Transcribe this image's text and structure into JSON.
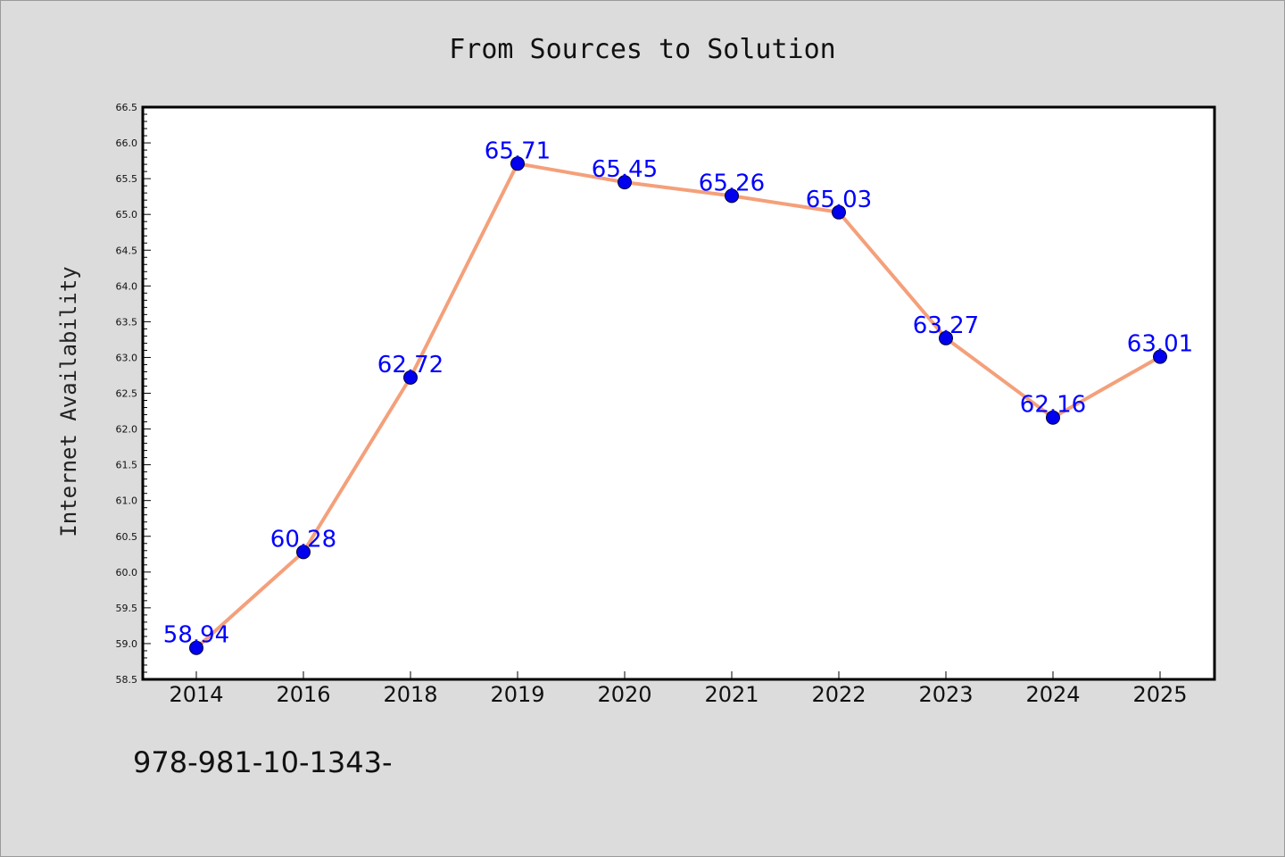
{
  "chart_data": {
    "type": "line",
    "title": "From Sources to Solution",
    "ylabel": "Internet Availability",
    "xlabel": "",
    "categories": [
      "2014",
      "2016",
      "2018",
      "2019",
      "2020",
      "2021",
      "2022",
      "2023",
      "2024",
      "2025"
    ],
    "series": [
      {
        "values": [
          58.94,
          60.28,
          62.72,
          65.71,
          65.45,
          65.26,
          65.03,
          63.27,
          62.16,
          63.01
        ],
        "line_color": "#f4a07a",
        "marker_color": "#0000ee"
      }
    ],
    "ylim": [
      58.5,
      66.5
    ],
    "ytick_step": 0.5,
    "data_labels": [
      "58.94",
      "60.28",
      "62.72",
      "65.71",
      "65.45",
      "65.26",
      "65.03",
      "63.27",
      "62.16",
      "63.01"
    ],
    "data_label_color": "#0000ff",
    "grid": false,
    "legend": "none",
    "background_color": "#dcdcdc",
    "plot_background_color": "#ffffff"
  },
  "footnote": "978-981-10-1343-"
}
